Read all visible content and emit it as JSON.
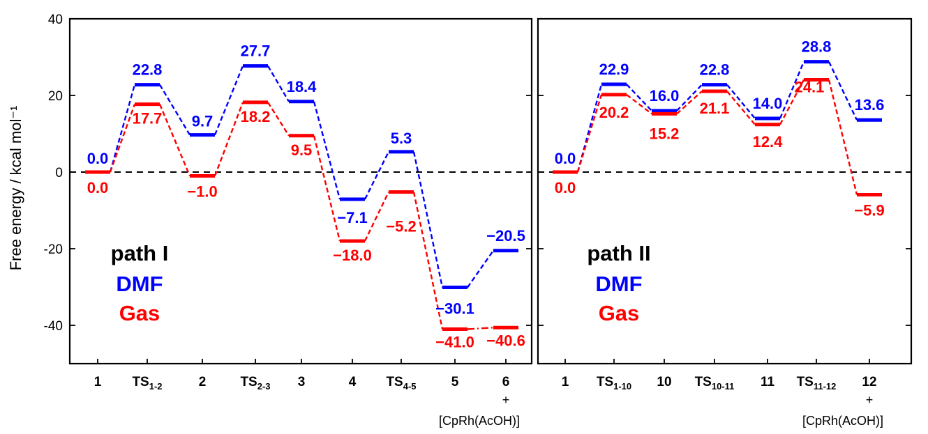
{
  "colors": {
    "dmf": "#0000ff",
    "gas": "#ff0000",
    "axis": "#000000"
  },
  "chart_data": {
    "type": "line",
    "ylabel": "Free energy / kcal mol⁻¹",
    "ylim": [
      -50,
      40
    ],
    "yticks": [
      40,
      20,
      0,
      -20,
      -40
    ],
    "zero_line": "dashed",
    "panels": [
      {
        "name": "path I",
        "categories": [
          {
            "main": "1",
            "sub": "",
            "extra": []
          },
          {
            "main": "TS",
            "sub": "1-2",
            "extra": []
          },
          {
            "main": "2",
            "sub": "",
            "extra": []
          },
          {
            "main": "TS",
            "sub": "2-3",
            "extra": []
          },
          {
            "main": "3",
            "sub": "",
            "extra": []
          },
          {
            "main": "4",
            "sub": "",
            "extra": []
          },
          {
            "main": "TS",
            "sub": "4-5",
            "extra": []
          },
          {
            "main": "5",
            "sub": "",
            "extra": []
          },
          {
            "main": "6",
            "sub": "",
            "extra": [
              "+",
              "[CpRh(AcOH)]"
            ]
          }
        ],
        "legend": [
          "path I",
          "DMF",
          "Gas"
        ],
        "series": [
          {
            "name": "DMF",
            "key": "dmf",
            "values": [
              0.0,
              22.8,
              9.7,
              27.7,
              18.4,
              -7.1,
              5.3,
              -30.1,
              -20.5
            ],
            "labels": [
              "0.0",
              "22.8",
              "9.7",
              "27.7",
              "18.4",
              "−7.1",
              "5.3",
              "−30.1",
              "−20.5"
            ]
          },
          {
            "name": "Gas",
            "key": "gas",
            "values": [
              0.0,
              17.7,
              -1.0,
              18.2,
              9.5,
              -18.0,
              -5.2,
              -41.0,
              -40.6
            ],
            "labels": [
              "0.0",
              "17.7",
              "−1.0",
              "18.2",
              "9.5",
              "−18.0",
              "−5.2",
              "−41.0",
              "−40.6"
            ]
          }
        ]
      },
      {
        "name": "path II",
        "categories": [
          {
            "main": "1",
            "sub": "",
            "extra": []
          },
          {
            "main": "TS",
            "sub": "1-10",
            "extra": []
          },
          {
            "main": "10",
            "sub": "",
            "extra": []
          },
          {
            "main": "TS",
            "sub": "10-11",
            "extra": []
          },
          {
            "main": "11",
            "sub": "",
            "extra": []
          },
          {
            "main": "TS",
            "sub": "11-12",
            "extra": []
          },
          {
            "main": "12",
            "sub": "",
            "extra": [
              "+",
              "[CpRh(AcOH)]"
            ]
          }
        ],
        "legend": [
          "path II",
          "DMF",
          "Gas"
        ],
        "series": [
          {
            "name": "DMF",
            "key": "dmf",
            "values": [
              0.0,
              22.9,
              16.0,
              22.8,
              14.0,
              28.8,
              13.6
            ],
            "labels": [
              "0.0",
              "22.9",
              "16.0",
              "22.8",
              "14.0",
              "28.8",
              "13.6"
            ]
          },
          {
            "name": "Gas",
            "key": "gas",
            "values": [
              0.0,
              20.2,
              15.2,
              21.1,
              12.4,
              24.1,
              -5.9
            ],
            "labels": [
              "0.0",
              "20.2",
              "15.2",
              "21.1",
              "12.4",
              "24.1",
              "−5.9"
            ]
          }
        ]
      }
    ]
  }
}
